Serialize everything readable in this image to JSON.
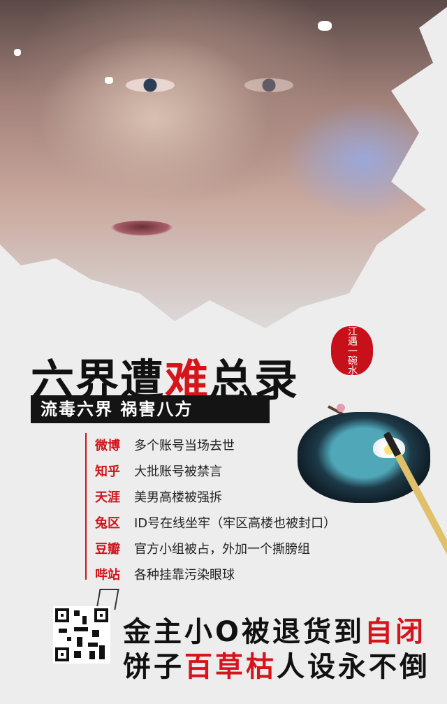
{
  "title": {
    "part1": "六界遭",
    "highlight": "难",
    "part2": "总录"
  },
  "seal_text": "江遇一碗水",
  "banner": "流毒六界  祸害八方",
  "items": [
    {
      "site": "微博",
      "text": "多个账号当场去世"
    },
    {
      "site": "知乎",
      "text": "大批账号被禁言"
    },
    {
      "site": "天涯",
      "text": "美男高楼被强拆"
    },
    {
      "site": "兔区",
      "text": "ID号在线坐牢（牢区高楼也被封口）"
    },
    {
      "site": "豆瓣",
      "text": "官方小组被占，外加一个撕膀组"
    },
    {
      "site": "哔站",
      "text": "各种挂靠污染眼球"
    }
  ],
  "slogan1": {
    "text": "金主小O被退货到",
    "highlight": "自闭"
  },
  "slogan2": {
    "part1": "饼子",
    "highlight": "百草枯",
    "part2": "人设永不倒"
  },
  "colors": {
    "accent": "#d6141b",
    "text": "#111111"
  },
  "icons": [
    "qr-code-icon",
    "inkstone-illustration",
    "brush-illustration",
    "plum-blossom-illustration"
  ]
}
